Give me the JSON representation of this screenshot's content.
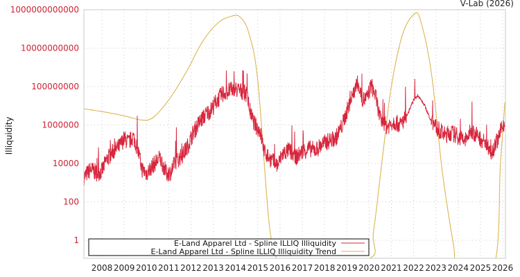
{
  "credit": "V-Lab (2026)",
  "colors": {
    "series": "#d7263d",
    "trend": "#dcb452",
    "ytick": "#cc2233",
    "grid": "#c8c8c8",
    "frame": "#c8c8c8"
  },
  "chart_data": {
    "type": "line",
    "title": "",
    "xlabel": "",
    "ylabel": "Illiquidity",
    "yscale": "log",
    "ylim": [
      0.1,
      1000000000000
    ],
    "xlim": [
      2007.2,
      2026.1
    ],
    "grid": true,
    "legend_position": "lower-left inside",
    "y_ticks": [
      "1",
      "100",
      "10000",
      "1000000",
      "100000000",
      "10000000000",
      "1000000000000"
    ],
    "x_ticks": [
      "2008",
      "2009",
      "2010",
      "2011",
      "2012",
      "2013",
      "2014",
      "2015",
      "2016",
      "2017",
      "2018",
      "2019",
      "2020",
      "2021",
      "2022",
      "2023",
      "2024",
      "2025",
      "2026"
    ],
    "series": [
      {
        "name": "E-Land Apparel Ltd - Spline ILLIQ Illiquidity",
        "color": "#d7263d",
        "x": [
          2007.2,
          2007.5,
          2007.8,
          2008.0,
          2008.2,
          2008.5,
          2008.8,
          2009.0,
          2009.2,
          2009.4,
          2009.6,
          2009.8,
          2010.0,
          2010.3,
          2010.6,
          2010.9,
          2011.1,
          2011.3,
          2011.6,
          2011.9,
          2012.1,
          2012.4,
          2012.7,
          2012.9,
          2013.1,
          2013.4,
          2013.7,
          2014.0,
          2014.3,
          2014.5,
          2014.7,
          2014.9,
          2015.1,
          2015.3,
          2015.6,
          2015.9,
          2016.1,
          2016.4,
          2016.7,
          2017.0,
          2017.3,
          2017.6,
          2017.9,
          2018.2,
          2018.5,
          2018.8,
          2019.0,
          2019.3,
          2019.5,
          2019.7,
          2019.9,
          2020.1,
          2020.3,
          2020.5,
          2020.8,
          2021.1,
          2021.4,
          2021.7,
          2022.0,
          2022.2,
          2022.5,
          2022.8,
          2023.1,
          2023.4,
          2023.7,
          2024.0,
          2024.3,
          2024.6,
          2024.9,
          2025.2,
          2025.5,
          2025.8,
          2026.1
        ],
        "values": [
          2000,
          5000,
          3000,
          4000,
          15000,
          40000,
          80000,
          200000,
          120000,
          250000,
          60000,
          5000,
          3000,
          8000,
          20000,
          3000,
          3500,
          12000,
          25000,
          100000,
          400000,
          1500000,
          4000000,
          6000000,
          15000000,
          40000000,
          60000000,
          70000000,
          55000000,
          40000000,
          3000000,
          900000,
          500000,
          40000,
          15000,
          8000,
          30000,
          50000,
          20000,
          40000,
          60000,
          50000,
          100000,
          150000,
          200000,
          1000000,
          5000000,
          50000000,
          150000000,
          20000000,
          25000000,
          120000000,
          30000000,
          2000000,
          800000,
          1500000,
          1000000,
          3000000,
          20000000,
          35000000,
          10000000,
          1500000,
          600000,
          300000,
          400000,
          250000,
          150000,
          500000,
          250000,
          120000,
          40000,
          200000,
          1800000
        ]
      },
      {
        "name": "E-Land Apparel Ltd - Spline ILLIQ Illiquidity Trend",
        "color": "#dcb452",
        "x": [
          2007.2,
          2008.0,
          2009.0,
          2009.8,
          2010.3,
          2011.0,
          2011.8,
          2012.5,
          2013.2,
          2013.8,
          2014.2,
          2014.6,
          2015.0,
          2015.5,
          2015.85,
          2016.0,
          2019.9,
          2020.2,
          2020.6,
          2021.0,
          2021.5,
          2022.0,
          2022.3,
          2022.8,
          2023.3,
          2023.8,
          2024.0,
          2025.6,
          2025.9,
          2026.1
        ],
        "values": [
          7000000,
          5000000,
          3000000,
          1800000,
          2500000,
          20000000,
          600000000,
          20000000000,
          200000000000,
          450000000000,
          420000000000,
          60000000000,
          200000000,
          10,
          0.1,
          0.05,
          0.1,
          3,
          20000,
          100000000,
          50000000000,
          550000000000,
          300000000000,
          500000000,
          3000,
          0.5,
          0.05,
          0.05,
          10000,
          15000000
        ]
      }
    ]
  }
}
